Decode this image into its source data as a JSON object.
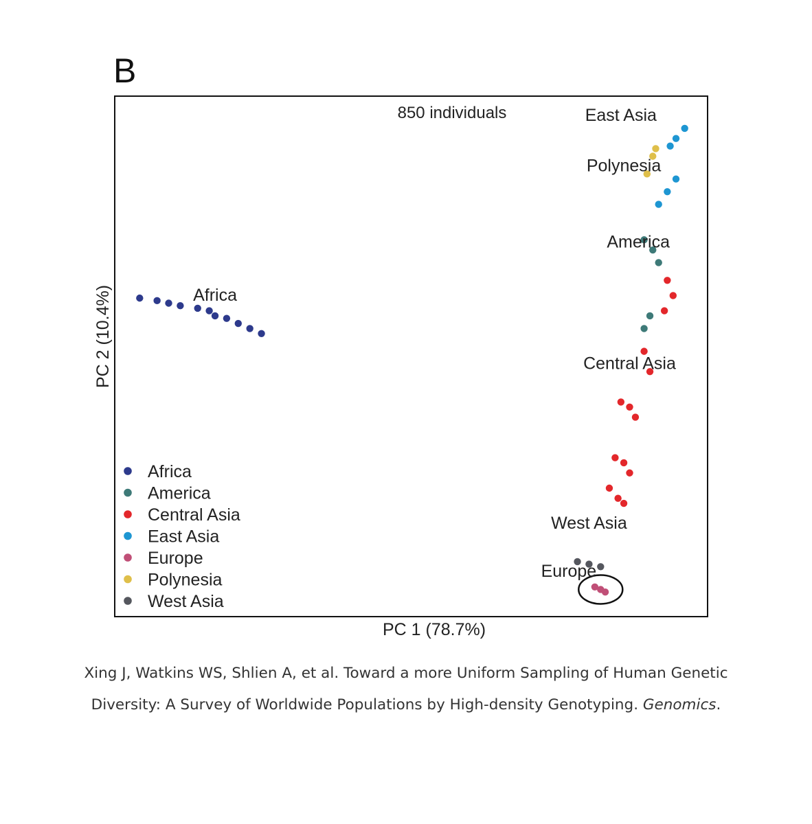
{
  "panel_label": "B",
  "chart_data": {
    "type": "scatter",
    "title": "850 individuals",
    "xlabel": "PC 1 (78.7%)",
    "ylabel": "PC 2 (10.4%)",
    "xlim": [
      0,
      100
    ],
    "ylim": [
      0,
      100
    ],
    "grid": false,
    "legend_position": "bottom-left",
    "series": [
      {
        "name": "Africa",
        "color": "#2d3a8c",
        "clusters": [
          {
            "x": [
              3,
              6,
              8,
              10,
              13,
              15
            ],
            "y": [
              61.5,
              61,
              60.5,
              60,
              59.5,
              59
            ]
          },
          {
            "x": [
              16,
              18,
              20,
              22,
              24
            ],
            "y": [
              58,
              57.5,
              56.5,
              55.5,
              54.5
            ]
          }
        ]
      },
      {
        "name": "America",
        "color": "#3e7a78",
        "clusters": [
          {
            "x": [
              90,
              91.5,
              92.5
            ],
            "y": [
              73,
              71,
              68.5
            ]
          },
          {
            "x": [
              91,
              90
            ],
            "y": [
              58,
              55.5
            ]
          }
        ]
      },
      {
        "name": "Central Asia",
        "color": "#e3272b",
        "clusters": [
          {
            "x": [
              94,
              95,
              93.5
            ],
            "y": [
              65,
              62,
              59
            ]
          },
          {
            "x": [
              90,
              91
            ],
            "y": [
              51,
              47
            ]
          },
          {
            "x": [
              86,
              87.5,
              88.5
            ],
            "y": [
              41,
              40,
              38
            ]
          },
          {
            "x": [
              85,
              86.5,
              87.5
            ],
            "y": [
              30,
              29,
              27
            ]
          },
          {
            "x": [
              84,
              85.5,
              86.5
            ],
            "y": [
              24,
              22,
              21
            ]
          }
        ]
      },
      {
        "name": "East Asia",
        "color": "#1e96d2",
        "clusters": [
          {
            "x": [
              97,
              95.5,
              94.5
            ],
            "y": [
              95,
              93,
              91.5
            ]
          },
          {
            "x": [
              95.5,
              94,
              92.5
            ],
            "y": [
              85,
              82.5,
              80
            ]
          }
        ]
      },
      {
        "name": "Europe",
        "color": "#c04f77",
        "clusters": [
          {
            "x": [
              81.5,
              82.5,
              83.3
            ],
            "y": [
              4.5,
              4,
              3.5
            ]
          }
        ]
      },
      {
        "name": "Polynesia",
        "color": "#dfbf4a",
        "clusters": [
          {
            "x": [
              92,
              91.5,
              90.5
            ],
            "y": [
              91,
              89.5,
              86
            ]
          }
        ]
      },
      {
        "name": "West Asia",
        "color": "#55575e",
        "clusters": [
          {
            "x": [
              78.5,
              80.5,
              82.5
            ],
            "y": [
              9.5,
              9,
              8.5
            ]
          }
        ]
      }
    ],
    "annotations": [
      {
        "text": "Africa",
        "x": 16,
        "y": 61
      },
      {
        "text": "East Asia",
        "x": 86,
        "y": 96.5
      },
      {
        "text": "Polynesia",
        "x": 86.5,
        "y": 86.5
      },
      {
        "text": "America",
        "x": 89,
        "y": 71.5
      },
      {
        "text": "Central Asia",
        "x": 87.5,
        "y": 47.5
      },
      {
        "text": "West Asia",
        "x": 80.5,
        "y": 16
      },
      {
        "text": "Europe",
        "x": 77,
        "y": 6.5
      }
    ],
    "highlight": {
      "series": "Europe",
      "x": 82.5,
      "y": 4,
      "shape": "ellipse"
    }
  },
  "caption": {
    "line1": "Xing J, Watkins WS, Shlien A, et al. Toward a more Uniform Sampling of Human Genetic",
    "line2": "Diversity: A Survey of Worldwide Populations by High-density Genotyping.",
    "journal": "Genomics",
    "end": "."
  }
}
